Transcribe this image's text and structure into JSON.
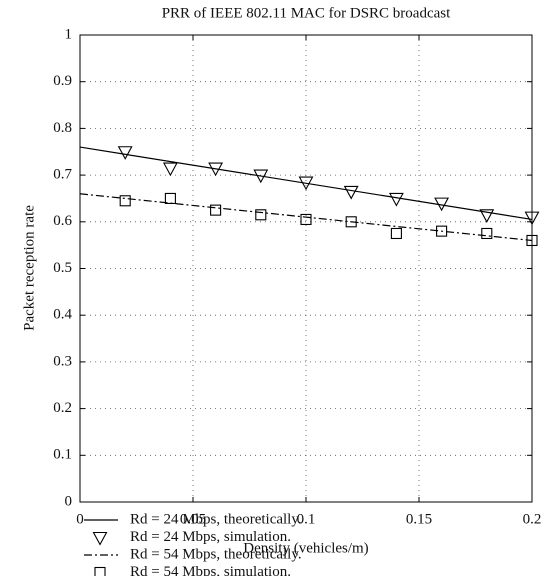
{
  "chart_data": {
    "type": "line",
    "title": "PRR of IEEE 802.11 MAC for DSRC broadcast",
    "x_label": "Density (vehicles/m)",
    "y_label": "Packet reception rate",
    "xlim": [
      0,
      0.2
    ],
    "xticks": [
      0,
      0.05,
      0.1,
      0.15,
      0.2
    ],
    "ylim": [
      0,
      1
    ],
    "yticks": [
      0,
      0.1,
      0.2,
      0.3,
      0.4,
      0.5,
      0.6,
      0.7,
      0.8,
      0.9,
      1
    ],
    "grid": true,
    "series": [
      {
        "name": "Rd = 24 Mbps, theoretically.",
        "color": "#000000",
        "marker": "none",
        "dash": "solid",
        "x": [
          0,
          0.2
        ],
        "values": [
          0.76,
          0.605
        ]
      },
      {
        "name": "Rd = 24 Mbps, simulation.",
        "color": "#000000",
        "marker": "triangle",
        "dash": "none",
        "x": [
          0.02,
          0.04,
          0.06,
          0.08,
          0.1,
          0.12,
          0.14,
          0.16,
          0.18,
          0.2
        ],
        "values": [
          0.75,
          0.715,
          0.715,
          0.7,
          0.685,
          0.665,
          0.65,
          0.64,
          0.615,
          0.61
        ]
      },
      {
        "name": "Rd = 54 Mbps, theoretically.",
        "color": "#000000",
        "marker": "none",
        "dash": "dashdot",
        "x": [
          0,
          0.2
        ],
        "values": [
          0.66,
          0.56
        ]
      },
      {
        "name": "Rd = 54 Mbps, simulation.",
        "color": "#000000",
        "marker": "square",
        "dash": "none",
        "x": [
          0.02,
          0.04,
          0.06,
          0.08,
          0.1,
          0.12,
          0.14,
          0.16,
          0.18,
          0.2
        ],
        "values": [
          0.645,
          0.65,
          0.625,
          0.615,
          0.605,
          0.6,
          0.575,
          0.58,
          0.575,
          0.56
        ]
      }
    ]
  }
}
